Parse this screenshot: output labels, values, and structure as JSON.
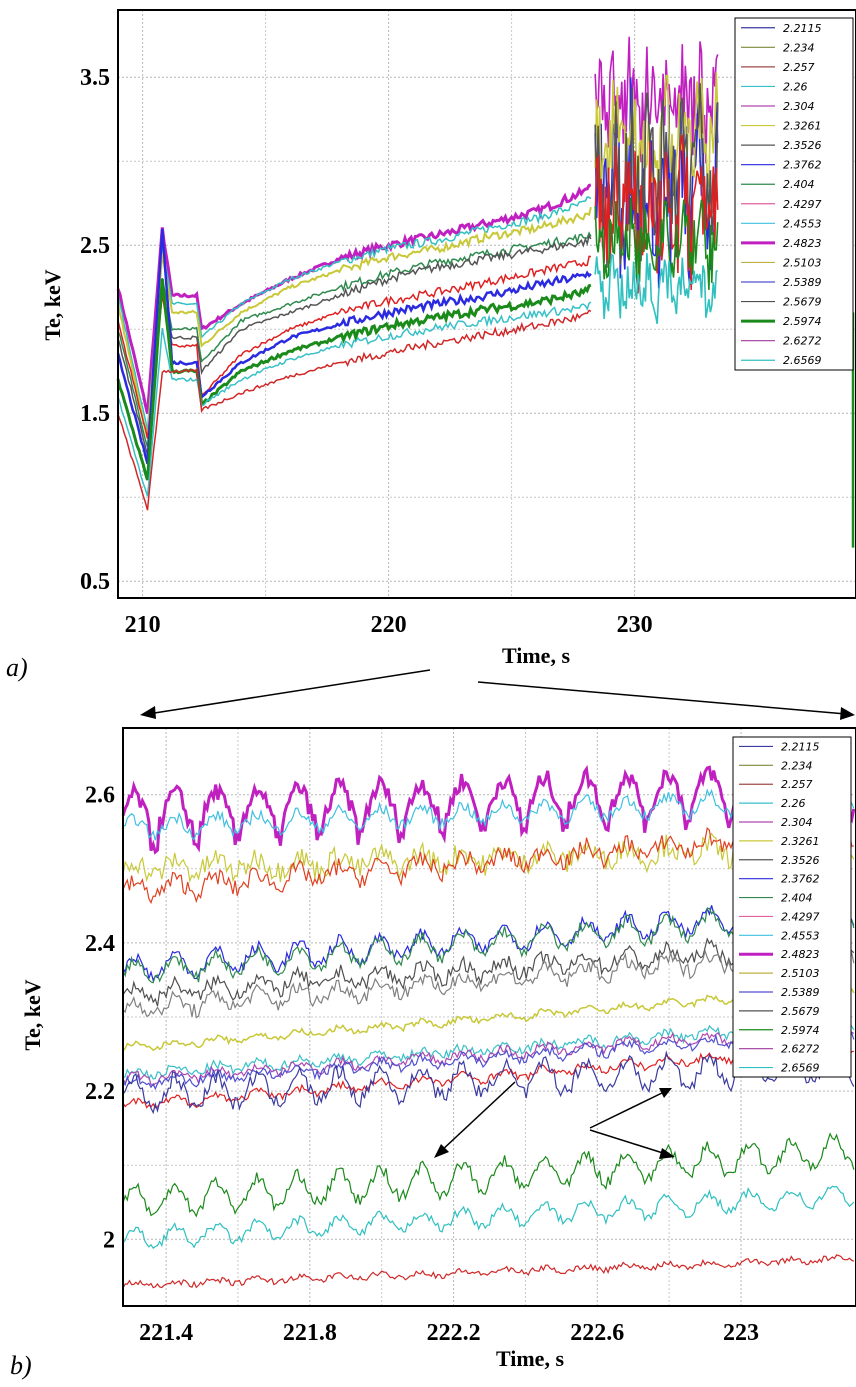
{
  "chart_data": [
    {
      "panel": "a)",
      "type": "line",
      "xlabel": "Time, s",
      "ylabel": "Te, keV",
      "xlim": [
        209,
        239
      ],
      "ylim": [
        0.4,
        3.9
      ],
      "xticks": [
        210,
        220,
        230
      ],
      "yticks": [
        0.5,
        1.5,
        2.5,
        3.5
      ],
      "xtick_labels": [
        "210",
        "220",
        "230"
      ],
      "ytick_labels": [
        "0.5",
        "1.5",
        "2.5",
        "3.5"
      ],
      "grid": true,
      "legend": "top-right",
      "series": [
        {
          "name": "2.2115",
          "color": "#3a3aa0"
        },
        {
          "name": "2.234",
          "color": "#7a8a3a"
        },
        {
          "name": "2.257",
          "color": "#a04a4a"
        },
        {
          "name": "2.26",
          "color": "#38c0c8"
        },
        {
          "name": "2.304",
          "color": "#b048b0"
        },
        {
          "name": "2.3261",
          "color": "#c8c838"
        },
        {
          "name": "2.3526",
          "color": "#555555"
        },
        {
          "name": "2.3762",
          "color": "#2a2ae0"
        },
        {
          "name": "2.404",
          "color": "#2e8a4e"
        },
        {
          "name": "2.4297",
          "color": "#e060a0"
        },
        {
          "name": "2.4553",
          "color": "#40c0e0"
        },
        {
          "name": "2.4823",
          "color": "#c020c0",
          "bold": true
        },
        {
          "name": "2.5103",
          "color": "#c0b040"
        },
        {
          "name": "2.5389",
          "color": "#5050d0"
        },
        {
          "name": "2.5679",
          "color": "#505050"
        },
        {
          "name": "2.5974",
          "color": "#1a8a1a",
          "bold": true
        },
        {
          "name": "2.6272",
          "color": "#a03aa0"
        },
        {
          "name": "2.6569",
          "color": "#30c0c0"
        }
      ]
    },
    {
      "panel": "b)",
      "type": "line",
      "xlabel": "Time, s",
      "ylabel": "Te, keV",
      "xlim": [
        221.28,
        223.32
      ],
      "ylim": [
        1.91,
        2.69
      ],
      "xticks": [
        221.4,
        221.8,
        222.2,
        222.6,
        223.0
      ],
      "yticks": [
        2.0,
        2.2,
        2.4,
        2.6
      ],
      "xtick_labels": [
        "221.4",
        "221.8",
        "222.2",
        "222.6",
        "223"
      ],
      "ytick_labels": [
        "2",
        "2.2",
        "2.4",
        "2.6"
      ],
      "grid": true,
      "legend": "top-right",
      "series": [
        {
          "name": "2.2115",
          "color": "#3a3aa0"
        },
        {
          "name": "2.234",
          "color": "#7a8a3a"
        },
        {
          "name": "2.257",
          "color": "#a04a4a"
        },
        {
          "name": "2.26",
          "color": "#38c0c8"
        },
        {
          "name": "2.304",
          "color": "#b048b0"
        },
        {
          "name": "2.3261",
          "color": "#c8c838"
        },
        {
          "name": "2.3526",
          "color": "#555555"
        },
        {
          "name": "2.3762",
          "color": "#2a2ae0"
        },
        {
          "name": "2.404",
          "color": "#2e8a4e"
        },
        {
          "name": "2.4297",
          "color": "#e060a0"
        },
        {
          "name": "2.4553",
          "color": "#40c0e0"
        },
        {
          "name": "2.4823",
          "color": "#c020c0",
          "bold": true
        },
        {
          "name": "2.5103",
          "color": "#c0b040"
        },
        {
          "name": "2.5389",
          "color": "#5050d0"
        },
        {
          "name": "2.5679",
          "color": "#505050"
        },
        {
          "name": "2.5974",
          "color": "#1a8a1a"
        },
        {
          "name": "2.6272",
          "color": "#a03aa0"
        },
        {
          "name": "2.6569",
          "color": "#30c0c0"
        }
      ]
    }
  ],
  "traces_a": [
    {
      "color": "#c020c0",
      "w": 3.0,
      "pts": [
        [
          209,
          2.25
        ],
        [
          210.2,
          1.5
        ],
        [
          210.8,
          2.6
        ],
        [
          211.2,
          2.2
        ],
        [
          212.2,
          2.2
        ],
        [
          212.4,
          2.0
        ],
        [
          214,
          2.15
        ],
        [
          216,
          2.3
        ],
        [
          218,
          2.42
        ],
        [
          220,
          2.5
        ],
        [
          222,
          2.56
        ],
        [
          224,
          2.63
        ],
        [
          226,
          2.7
        ],
        [
          228,
          2.82
        ],
        [
          228.3,
          2.9
        ]
      ]
    },
    {
      "color": "#30c0c0",
      "w": 1.5,
      "pts": [
        [
          209,
          2.2
        ],
        [
          210.2,
          1.4
        ],
        [
          210.8,
          2.5
        ],
        [
          211.2,
          2.15
        ],
        [
          212.2,
          2.15
        ],
        [
          212.4,
          1.95
        ],
        [
          214,
          2.15
        ],
        [
          216,
          2.3
        ],
        [
          218,
          2.4
        ],
        [
          220,
          2.48
        ],
        [
          222,
          2.53
        ],
        [
          224,
          2.6
        ],
        [
          226,
          2.66
        ],
        [
          228,
          2.75
        ],
        [
          228.3,
          2.8
        ]
      ]
    },
    {
      "color": "#c8c838",
      "w": 2.0,
      "pts": [
        [
          209,
          2.15
        ],
        [
          210.2,
          1.35
        ],
        [
          210.8,
          2.45
        ],
        [
          211.2,
          2.1
        ],
        [
          212.2,
          2.1
        ],
        [
          212.4,
          1.9
        ],
        [
          214,
          2.1
        ],
        [
          216,
          2.25
        ],
        [
          218,
          2.35
        ],
        [
          220,
          2.43
        ],
        [
          222,
          2.48
        ],
        [
          224,
          2.55
        ],
        [
          226,
          2.6
        ],
        [
          228,
          2.68
        ],
        [
          228.3,
          2.72
        ]
      ]
    },
    {
      "color": "#2e8a4e",
      "w": 1.5,
      "pts": [
        [
          209,
          2.0
        ],
        [
          210.2,
          1.3
        ],
        [
          210.8,
          2.3
        ],
        [
          211.2,
          2.0
        ],
        [
          212.2,
          2.0
        ],
        [
          212.4,
          1.8
        ],
        [
          214,
          2.05
        ],
        [
          216,
          2.15
        ],
        [
          218,
          2.25
        ],
        [
          220,
          2.33
        ],
        [
          222,
          2.4
        ],
        [
          224,
          2.45
        ],
        [
          226,
          2.5
        ],
        [
          228,
          2.55
        ],
        [
          228.3,
          2.58
        ]
      ]
    },
    {
      "color": "#555555",
      "w": 1.5,
      "pts": [
        [
          209,
          1.95
        ],
        [
          210.2,
          1.25
        ],
        [
          210.8,
          2.25
        ],
        [
          211.2,
          1.95
        ],
        [
          212.2,
          1.95
        ],
        [
          212.4,
          1.75
        ],
        [
          214,
          2.0
        ],
        [
          216,
          2.1
        ],
        [
          218,
          2.2
        ],
        [
          220,
          2.3
        ],
        [
          222,
          2.37
        ],
        [
          224,
          2.42
        ],
        [
          226,
          2.47
        ],
        [
          228,
          2.52
        ],
        [
          228.3,
          2.55
        ]
      ]
    },
    {
      "color": "#e02020",
      "w": 1.5,
      "pts": [
        [
          209,
          2.05
        ],
        [
          210.2,
          1.35
        ],
        [
          210.8,
          2.2
        ],
        [
          211.2,
          1.9
        ],
        [
          212.2,
          1.9
        ],
        [
          212.4,
          1.6
        ],
        [
          214,
          1.85
        ],
        [
          216,
          2.0
        ],
        [
          218,
          2.1
        ],
        [
          220,
          2.17
        ],
        [
          222,
          2.22
        ],
        [
          224,
          2.28
        ],
        [
          226,
          2.34
        ],
        [
          228,
          2.4
        ],
        [
          228.3,
          2.42
        ]
      ]
    },
    {
      "color": "#2a2ae0",
      "w": 2.5,
      "pts": [
        [
          209,
          1.85
        ],
        [
          210.2,
          1.2
        ],
        [
          210.8,
          2.6
        ],
        [
          211.2,
          1.8
        ],
        [
          212.2,
          1.8
        ],
        [
          212.4,
          1.6
        ],
        [
          214,
          1.8
        ],
        [
          216,
          1.95
        ],
        [
          218,
          2.03
        ],
        [
          220,
          2.1
        ],
        [
          222,
          2.15
        ],
        [
          224,
          2.2
        ],
        [
          226,
          2.26
        ],
        [
          228,
          2.32
        ],
        [
          228.3,
          2.35
        ]
      ]
    },
    {
      "color": "#1a8a1a",
      "w": 3.0,
      "pts": [
        [
          209,
          1.7
        ],
        [
          210.2,
          1.1
        ],
        [
          210.8,
          2.3
        ],
        [
          211.2,
          1.75
        ],
        [
          212.2,
          1.75
        ],
        [
          212.4,
          1.55
        ],
        [
          214,
          1.75
        ],
        [
          216,
          1.87
        ],
        [
          218,
          1.95
        ],
        [
          220,
          2.02
        ],
        [
          222,
          2.07
        ],
        [
          224,
          2.12
        ],
        [
          226,
          2.16
        ],
        [
          228,
          2.22
        ],
        [
          228.3,
          2.25
        ]
      ]
    },
    {
      "color": "#38c0c8",
      "w": 1.5,
      "pts": [
        [
          209,
          1.6
        ],
        [
          210.2,
          1.0
        ],
        [
          210.8,
          2.0
        ],
        [
          211.2,
          1.7
        ],
        [
          212.2,
          1.7
        ],
        [
          212.4,
          1.55
        ],
        [
          214,
          1.7
        ],
        [
          216,
          1.82
        ],
        [
          218,
          1.9
        ],
        [
          220,
          1.96
        ],
        [
          222,
          2.01
        ],
        [
          224,
          2.05
        ],
        [
          226,
          2.09
        ],
        [
          228,
          2.13
        ],
        [
          228.3,
          2.15
        ]
      ]
    },
    {
      "color": "#d02828",
      "w": 1.5,
      "pts": [
        [
          209,
          1.5
        ],
        [
          210.2,
          0.93
        ],
        [
          210.8,
          1.75
        ],
        [
          211.2,
          1.75
        ],
        [
          212.2,
          1.75
        ],
        [
          212.4,
          1.52
        ],
        [
          214,
          1.62
        ],
        [
          216,
          1.72
        ],
        [
          218,
          1.8
        ],
        [
          220,
          1.86
        ],
        [
          222,
          1.92
        ],
        [
          224,
          1.97
        ],
        [
          226,
          2.02
        ],
        [
          228,
          2.08
        ],
        [
          228.3,
          2.1
        ]
      ]
    }
  ],
  "traces_a_tail": [
    {
      "color": "#c020c0",
      "base": 3.35,
      "amp": 0.3
    },
    {
      "color": "#2a2ae0",
      "base": 2.85,
      "amp": 0.45
    },
    {
      "color": "#c8c838",
      "base": 3.1,
      "amp": 0.3
    },
    {
      "color": "#555555",
      "base": 2.9,
      "amp": 0.4
    },
    {
      "color": "#e02020",
      "base": 2.7,
      "amp": 0.35
    },
    {
      "color": "#1a8a1a",
      "base": 2.5,
      "amp": 0.2
    },
    {
      "color": "#30c0c0",
      "base": 2.25,
      "amp": 0.15
    }
  ],
  "traces_b": [
    {
      "color": "#c020c0",
      "w": 3.0,
      "base": 2.575,
      "slope": 0.02,
      "amp": 0.025,
      "noise": 0.012
    },
    {
      "color": "#40c0e0",
      "w": 1.2,
      "base": 2.555,
      "slope": 0.02,
      "amp": 0.012,
      "noise": 0.008
    },
    {
      "color": "#c8c838",
      "w": 1.2,
      "base": 2.5,
      "slope": 0.015,
      "amp": 0.01,
      "noise": 0.015
    },
    {
      "color": "#e04020",
      "w": 1.2,
      "base": 2.47,
      "slope": 0.04,
      "amp": 0.01,
      "noise": 0.012
    },
    {
      "color": "#2a2ae0",
      "w": 1.2,
      "base": 2.365,
      "slope": 0.04,
      "amp": 0.015,
      "noise": 0.008
    },
    {
      "color": "#2e8a4e",
      "w": 1.2,
      "base": 2.36,
      "slope": 0.04,
      "amp": 0.015,
      "noise": 0.008
    },
    {
      "color": "#505050",
      "w": 1.2,
      "base": 2.33,
      "slope": 0.035,
      "amp": 0.01,
      "noise": 0.01
    },
    {
      "color": "#808080",
      "w": 1.2,
      "base": 2.31,
      "slope": 0.04,
      "amp": 0.01,
      "noise": 0.01
    },
    {
      "color": "#c8c838",
      "w": 1.5,
      "base": 2.258,
      "slope": 0.04,
      "amp": 0.004,
      "noise": 0.004
    },
    {
      "color": "#38c0c8",
      "w": 1.2,
      "base": 2.222,
      "slope": 0.035,
      "amp": 0.005,
      "noise": 0.006
    },
    {
      "color": "#b048b0",
      "w": 1.2,
      "base": 2.215,
      "slope": 0.035,
      "amp": 0.006,
      "noise": 0.006
    },
    {
      "color": "#5050d0",
      "w": 1.2,
      "base": 2.21,
      "slope": 0.035,
      "amp": 0.006,
      "noise": 0.006
    },
    {
      "color": "#e02020",
      "w": 1.2,
      "base": 2.18,
      "slope": 0.04,
      "amp": 0.005,
      "noise": 0.005
    },
    {
      "color": "#3a3aa0",
      "w": 1.2,
      "base": 2.195,
      "slope": 0.02,
      "amp": 0.02,
      "noise": 0.01
    },
    {
      "color": "#1a8a1a",
      "w": 1.2,
      "base": 2.05,
      "slope": 0.035,
      "amp": 0.02,
      "noise": 0.008
    },
    {
      "color": "#30c0c0",
      "w": 1.2,
      "base": 2.0,
      "slope": 0.03,
      "amp": 0.012,
      "noise": 0.006
    },
    {
      "color": "#d02828",
      "w": 1.2,
      "base": 1.938,
      "slope": 0.018,
      "amp": 0.003,
      "noise": 0.004
    }
  ],
  "labels": {
    "a": {
      "xlabel": "Time, s",
      "ylabel": "Te, keV",
      "panel": "a)"
    },
    "b": {
      "xlabel": "Time, s",
      "ylabel": "Te, keV",
      "panel": "b)"
    }
  }
}
